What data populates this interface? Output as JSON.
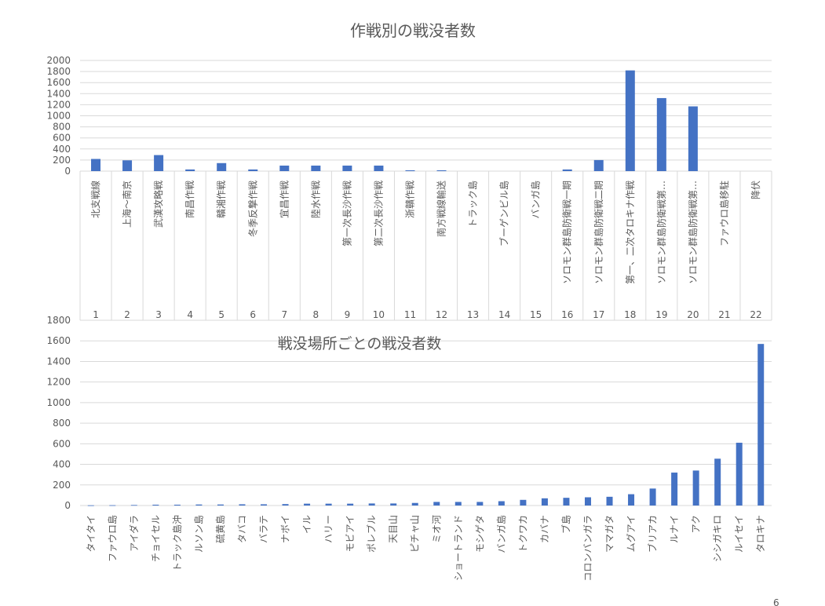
{
  "chart_data": [
    {
      "type": "bar",
      "title": "作戦別の戦没者数",
      "ylim": [
        0,
        2000
      ],
      "yticks": [
        0,
        200,
        400,
        600,
        800,
        1000,
        1200,
        1400,
        1600,
        1800,
        2000
      ],
      "grid": true,
      "categories": [
        "北支戦線",
        "上海～南京",
        "武漢攻略戦",
        "南昌作戦",
        "贛湘作戦",
        "冬季反撃作戦",
        "宜昌作戦",
        "陸水作戦",
        "第一次長沙作戦",
        "第二次長沙作戦",
        "浙贛作戦",
        "南方戦線輸送",
        "トラック島",
        "ブーゲンビル島",
        "バンガ島",
        "ソロモン群島防衛戦一期",
        "ソロモン群島防衛戦二期",
        "第一、二次タロキナ作戦",
        "ソロモン群島防衛戦第…",
        "ソロモン群島防衛戦第…",
        "ファウロ島移駐",
        "降伏"
      ],
      "numbers": [
        "1",
        "2",
        "3",
        "4",
        "5",
        "6",
        "7",
        "8",
        "9",
        "10",
        "11",
        "12",
        "13",
        "14",
        "15",
        "16",
        "17",
        "18",
        "19",
        "20",
        "21",
        "22"
      ],
      "values": [
        220,
        195,
        290,
        30,
        145,
        30,
        100,
        100,
        100,
        100,
        15,
        15,
        0,
        0,
        0,
        30,
        200,
        1820,
        1320,
        1170,
        0,
        0
      ]
    },
    {
      "type": "bar",
      "title": "戦没場所ごとの戦没者数",
      "ylim": [
        0,
        1800
      ],
      "yticks": [
        0,
        200,
        400,
        600,
        800,
        1000,
        1200,
        1400,
        1600,
        1800
      ],
      "grid": true,
      "categories": [
        "タイタイ",
        "ファウロ島",
        "アイダラ",
        "チョイセル",
        "トラック島沖",
        "ルソン島",
        "硫黄島",
        "タバコ",
        "バラテ",
        "ナボイ",
        "イル",
        "ハリー",
        "モビアイ",
        "ポレブル",
        "天目山",
        "ピチャ山",
        "ミオ河",
        "ショートランド",
        "モシゲタ",
        "バンガ島",
        "トクワカ",
        "カバナ",
        "ブ島",
        "コロンバンガラ",
        "ママガタ",
        "ムグアイ",
        "ブリアカ",
        "ルナイ",
        "アク",
        "シシガキロ",
        "ルイセイ",
        "タロキナ"
      ],
      "values": [
        2,
        3,
        5,
        8,
        8,
        10,
        10,
        12,
        12,
        14,
        18,
        18,
        18,
        20,
        20,
        25,
        35,
        35,
        35,
        42,
        55,
        70,
        75,
        80,
        85,
        110,
        165,
        320,
        340,
        455,
        610,
        1570
      ]
    }
  ],
  "footer_mark": "6"
}
